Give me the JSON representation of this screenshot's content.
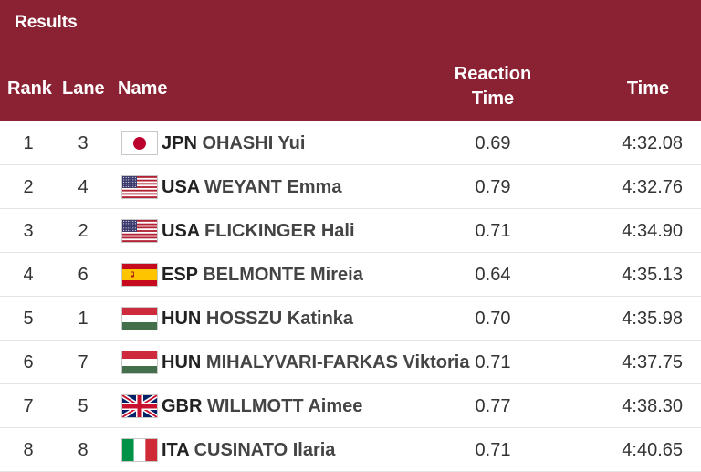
{
  "header": {
    "title": "Results",
    "columns": {
      "rank": "Rank",
      "lane": "Lane",
      "name": "Name",
      "reaction_line1": "Reaction",
      "reaction_line2": "Time",
      "time": "Time"
    }
  },
  "rows": [
    {
      "rank": "1",
      "lane": "3",
      "flag_icon": "japan-flag-icon",
      "country": "JPN",
      "athlete": "OHASHI Yui",
      "reaction": "0.69",
      "time": "4:32.08"
    },
    {
      "rank": "2",
      "lane": "4",
      "flag_icon": "usa-flag-icon",
      "country": "USA",
      "athlete": "WEYANT Emma",
      "reaction": "0.79",
      "time": "4:32.76"
    },
    {
      "rank": "3",
      "lane": "2",
      "flag_icon": "usa-flag-icon",
      "country": "USA",
      "athlete": "FLICKINGER Hali",
      "reaction": "0.71",
      "time": "4:34.90"
    },
    {
      "rank": "4",
      "lane": "6",
      "flag_icon": "spain-flag-icon",
      "country": "ESP",
      "athlete": "BELMONTE Mireia",
      "reaction": "0.64",
      "time": "4:35.13"
    },
    {
      "rank": "5",
      "lane": "1",
      "flag_icon": "hungary-flag-icon",
      "country": "HUN",
      "athlete": "HOSSZU Katinka",
      "reaction": "0.70",
      "time": "4:35.98"
    },
    {
      "rank": "6",
      "lane": "7",
      "flag_icon": "hungary-flag-icon",
      "country": "HUN",
      "athlete": "MIHALYVARI-FARKAS Viktoria",
      "reaction": "0.71",
      "time": "4:37.75"
    },
    {
      "rank": "7",
      "lane": "5",
      "flag_icon": "uk-flag-icon",
      "country": "GBR",
      "athlete": "WILLMOTT Aimee",
      "reaction": "0.77",
      "time": "4:38.30"
    },
    {
      "rank": "8",
      "lane": "8",
      "flag_icon": "italy-flag-icon",
      "country": "ITA",
      "athlete": "CUSINATO Ilaria",
      "reaction": "0.71",
      "time": "4:40.65"
    }
  ],
  "colors": {
    "header_background": "#8a2233",
    "header_text": "#ffffff",
    "row_divider": "#e3e3e3"
  }
}
